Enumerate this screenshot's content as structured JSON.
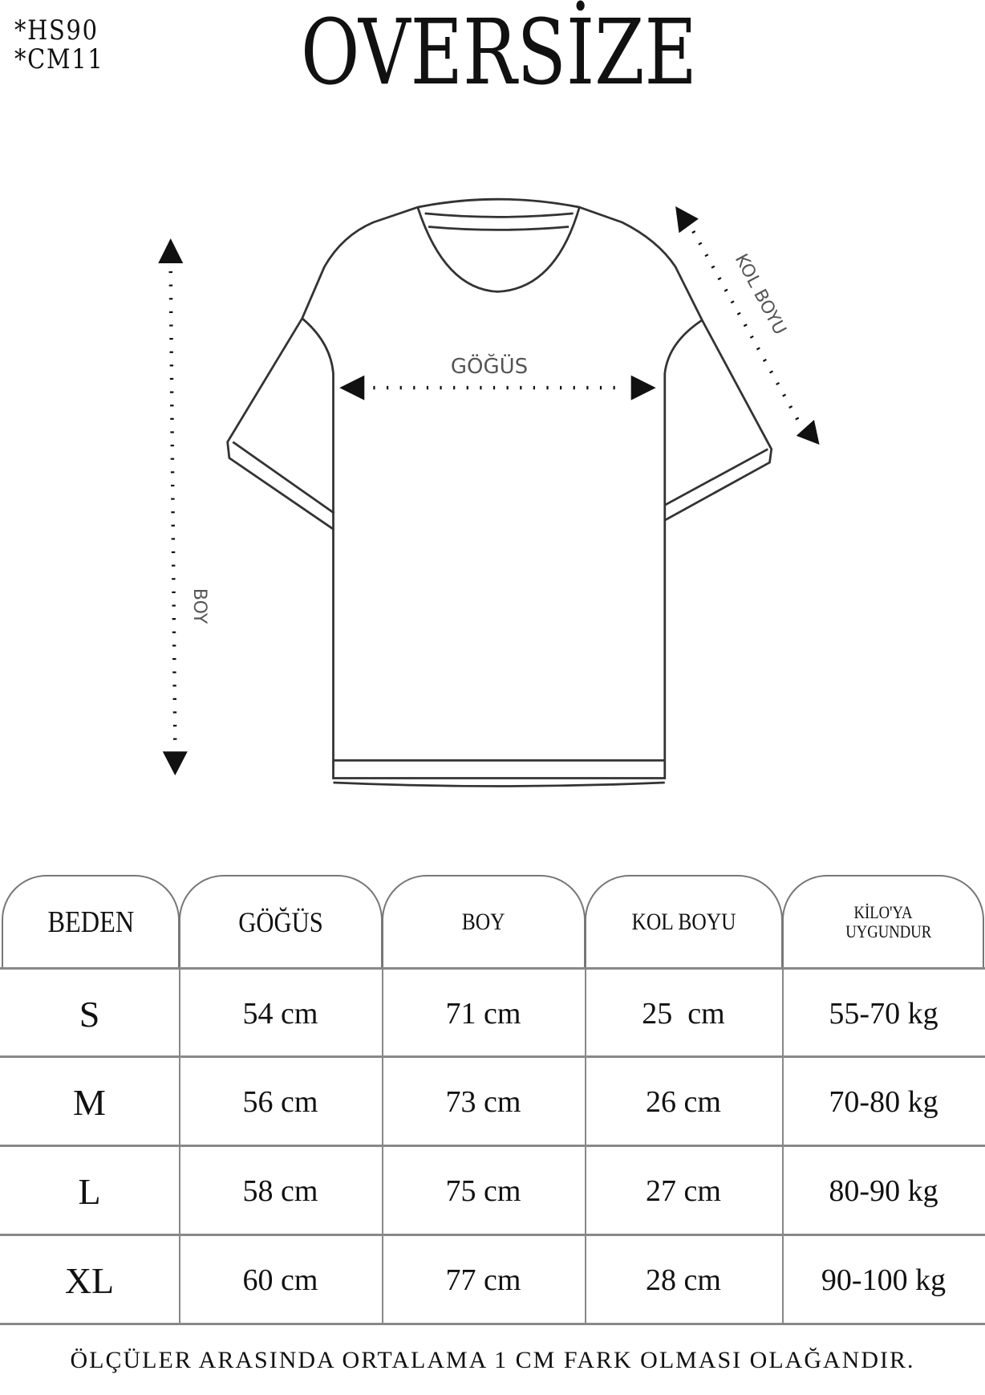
{
  "codes": [
    "*HS90",
    "*CM11"
  ],
  "title": "OVERSİZE",
  "diagram": {
    "chest": "GÖĞÜS",
    "length": "BOY",
    "sleeve": "KOL BOYU"
  },
  "table": {
    "headers": [
      "BEDEN",
      "GÖĞÜS",
      "BOY",
      "KOL BOYU",
      "KİLO'YA UYGUNDUR"
    ],
    "rows": [
      [
        "S",
        "54 cm",
        "71 cm",
        "25  cm",
        "55-70 kg"
      ],
      [
        "M",
        "56 cm",
        "73 cm",
        "26 cm",
        "70-80 kg"
      ],
      [
        "L",
        "58 cm",
        "75 cm",
        "27 cm",
        "80-90 kg"
      ],
      [
        "XL",
        "60 cm",
        "77 cm",
        "28 cm",
        "90-100 kg"
      ]
    ]
  },
  "footer": "ÖLÇÜLER ARASINDA ORTALAMA 1 CM FARK OLMASI OLAĞANDIR."
}
